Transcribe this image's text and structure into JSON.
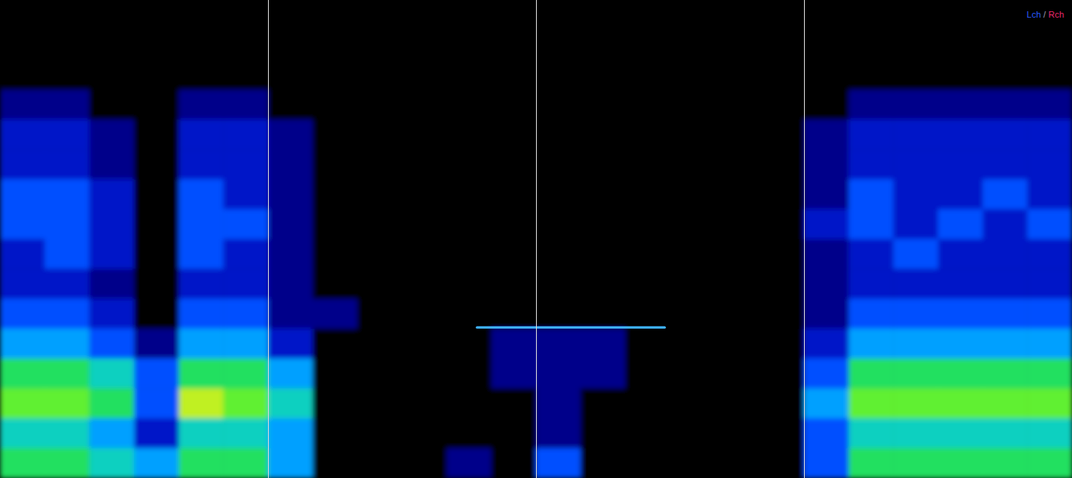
{
  "chart_data": {
    "type": "heatmap",
    "xlim": [
      0,
      4
    ],
    "ylim": [
      0,
      1
    ],
    "xticks": [
      1,
      2,
      3
    ],
    "grid": true,
    "tick_labels": false,
    "legend": "upper right",
    "channels": [
      {
        "name": "Lch",
        "color": "#2a5cff"
      },
      {
        "name": "Rch",
        "color": "#e8286c"
      }
    ],
    "channel_separator": "/",
    "color_range": [
      0,
      9
    ],
    "cells": [
      [
        0,
        0,
        0,
        0,
        0,
        0,
        0,
        0,
        0,
        0,
        0,
        0,
        0,
        0,
        0,
        0,
        0,
        0,
        0,
        0,
        0,
        0,
        0,
        0
      ],
      [
        0,
        0,
        0,
        0,
        0,
        0,
        0,
        0,
        0,
        0,
        0,
        0,
        0,
        0,
        0,
        0,
        0,
        0,
        0,
        0,
        0,
        0,
        0,
        0
      ],
      [
        0,
        0,
        0,
        0,
        0,
        0,
        0,
        0,
        0,
        0,
        0,
        0,
        0,
        0,
        0,
        0,
        0,
        0,
        0,
        0,
        0,
        0,
        0,
        0
      ],
      [
        1,
        1,
        0,
        0,
        1,
        1,
        0,
        0,
        0,
        0,
        0,
        0,
        0,
        0,
        0,
        0,
        0,
        0,
        0,
        1,
        1,
        1,
        1,
        1
      ],
      [
        2,
        2,
        1,
        0,
        2,
        2,
        1,
        0,
        0,
        0,
        0,
        0,
        0,
        0,
        0,
        0,
        0,
        0,
        1,
        2,
        2,
        2,
        2,
        2
      ],
      [
        2,
        2,
        1,
        0,
        2,
        2,
        1,
        0,
        0,
        0,
        0,
        0,
        0,
        0,
        0,
        0,
        0,
        0,
        1,
        2,
        2,
        2,
        2,
        2
      ],
      [
        3,
        3,
        2,
        0,
        3,
        2,
        1,
        0,
        0,
        0,
        0,
        0,
        0,
        0,
        0,
        0,
        0,
        0,
        1,
        3,
        2,
        2,
        3,
        2
      ],
      [
        3,
        3,
        2,
        0,
        3,
        3,
        1,
        0,
        0,
        0,
        0,
        0,
        0,
        0,
        0,
        0,
        0,
        0,
        2,
        3,
        2,
        3,
        2,
        3
      ],
      [
        2,
        3,
        2,
        0,
        3,
        2,
        1,
        0,
        0,
        0,
        0,
        0,
        0,
        0,
        0,
        0,
        0,
        0,
        1,
        2,
        3,
        2,
        2,
        2
      ],
      [
        2,
        2,
        1,
        0,
        2,
        2,
        1,
        0,
        0,
        0,
        0,
        0,
        0,
        0,
        0,
        0,
        0,
        0,
        1,
        2,
        2,
        2,
        2,
        2
      ],
      [
        3,
        3,
        2,
        0,
        3,
        3,
        1,
        1,
        0,
        0,
        0,
        0,
        0,
        0,
        0,
        0,
        0,
        0,
        1,
        3,
        3,
        3,
        3,
        3
      ],
      [
        4,
        4,
        3,
        1,
        4,
        4,
        2,
        0,
        0,
        0,
        0,
        1,
        1,
        1,
        0,
        0,
        0,
        0,
        2,
        4,
        4,
        4,
        4,
        4
      ],
      [
        6,
        6,
        5,
        3,
        6,
        6,
        4,
        0,
        0,
        0,
        0,
        1,
        1,
        1,
        0,
        0,
        0,
        0,
        3,
        6,
        6,
        6,
        6,
        6
      ],
      [
        7,
        7,
        6,
        3,
        8,
        7,
        5,
        0,
        0,
        0,
        0,
        0,
        1,
        0,
        0,
        0,
        0,
        0,
        4,
        7,
        7,
        7,
        7,
        7
      ],
      [
        5,
        5,
        4,
        2,
        5,
        5,
        4,
        0,
        0,
        0,
        0,
        0,
        1,
        0,
        0,
        0,
        0,
        0,
        3,
        5,
        5,
        5,
        5,
        5
      ],
      [
        6,
        6,
        5,
        4,
        6,
        6,
        4,
        0,
        0,
        0,
        1,
        0,
        3,
        0,
        0,
        0,
        0,
        0,
        3,
        6,
        6,
        6,
        6,
        6
      ]
    ],
    "tones": [
      {
        "x": [
          1.78,
          2.48
        ],
        "y": 0.315
      }
    ]
  }
}
